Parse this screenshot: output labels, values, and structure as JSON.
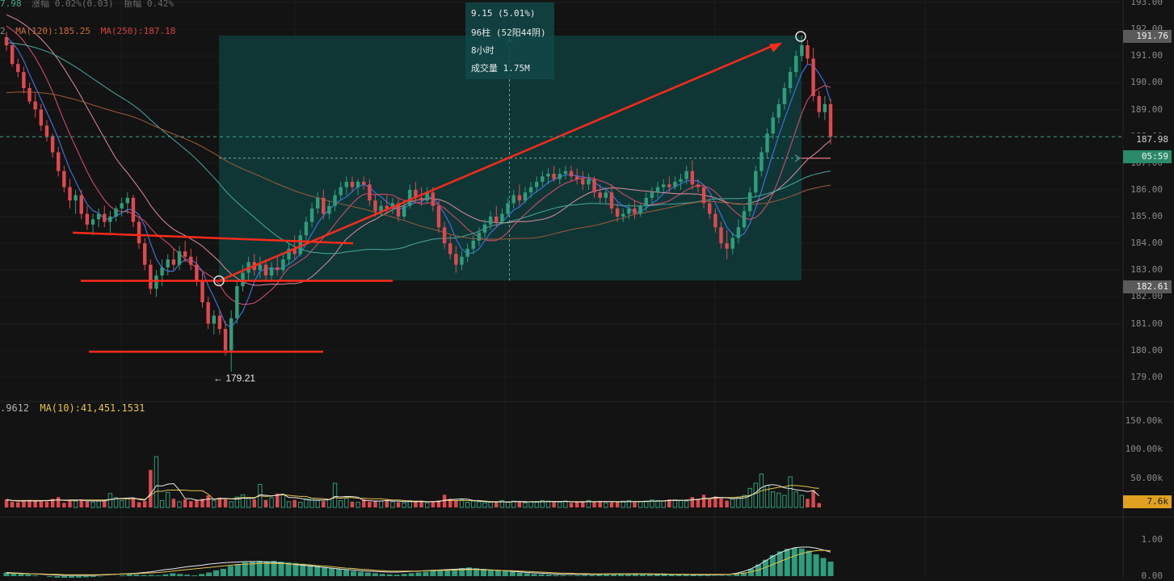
{
  "header": {
    "change_label": "涨幅 0.02%(0.03)",
    "amplitude_label": "振幅 0.42%",
    "left_fragment": "7.98"
  },
  "ma_legend": {
    "prefix": "2",
    "ma120": "MA(120):185.25",
    "ma250": "MA(250):187.18"
  },
  "measure_tooltip": {
    "change": "9.15 (5.01%)",
    "bars": "96柱 (52阳44阴)",
    "duration": "8小时",
    "volume": "成交量 1.75M"
  },
  "price_axis": {
    "ticks": [
      "193.00",
      "192.00",
      "191.00",
      "190.00",
      "189.00",
      "188.00",
      "187.00",
      "186.00",
      "185.00",
      "184.00",
      "183.00",
      "182.00",
      "181.00",
      "180.00",
      "179.00"
    ],
    "high_tag": "191.76",
    "current_tag": "187.98",
    "countdown_tag": "05:59",
    "low_tag": "182.61"
  },
  "low_annotation": "← 179.21",
  "volume_panel": {
    "legend_value": ".9612",
    "legend_ma": "MA(10):41,451.1531",
    "ticks": [
      "150.00k",
      "100.00k",
      "50.00k"
    ],
    "current_tag": "7.6k"
  },
  "indicator_panel": {
    "ticks": [
      "1.00",
      "0.00"
    ]
  },
  "colors": {
    "up": "#2e9d7c",
    "down": "#e0484f",
    "measure_box": "#0f3d3c",
    "annotation": "#ff2a1a",
    "volume_tag": "#e0a020",
    "price_tag": "#2a8a6a"
  },
  "chart_data": {
    "type": "candlestick",
    "interval": "5m",
    "y_range": [
      178.6,
      193.0
    ],
    "bars": [
      [
        191.7,
        191.9,
        191.2,
        191.4
      ],
      [
        191.4,
        191.5,
        190.6,
        190.7
      ],
      [
        190.7,
        190.9,
        190.2,
        190.4
      ],
      [
        190.4,
        190.6,
        189.6,
        189.8
      ],
      [
        189.8,
        190.0,
        189.2,
        189.3
      ],
      [
        189.3,
        189.6,
        188.7,
        189.0
      ],
      [
        189.0,
        189.2,
        188.2,
        188.4
      ],
      [
        188.4,
        188.6,
        187.8,
        188.0
      ],
      [
        188.0,
        188.1,
        187.2,
        187.4
      ],
      [
        187.4,
        187.6,
        186.5,
        186.7
      ],
      [
        186.7,
        186.9,
        185.9,
        186.1
      ],
      [
        186.1,
        186.4,
        185.3,
        185.6
      ],
      [
        185.6,
        186.0,
        185.1,
        185.8
      ],
      [
        185.8,
        186.0,
        184.9,
        185.1
      ],
      [
        185.1,
        185.4,
        184.5,
        184.7
      ],
      [
        184.7,
        185.1,
        184.3,
        184.9
      ],
      [
        184.9,
        185.3,
        184.6,
        185.1
      ],
      [
        185.1,
        185.4,
        184.6,
        184.8
      ],
      [
        184.8,
        185.2,
        184.4,
        185.0
      ],
      [
        185.0,
        185.4,
        184.8,
        185.3
      ],
      [
        185.3,
        185.7,
        185.0,
        185.5
      ],
      [
        185.5,
        185.9,
        185.1,
        185.7
      ],
      [
        185.7,
        185.8,
        184.6,
        184.8
      ],
      [
        184.8,
        185.0,
        183.8,
        184.0
      ],
      [
        184.0,
        184.2,
        183.0,
        183.2
      ],
      [
        183.2,
        183.4,
        182.1,
        182.3
      ],
      [
        182.3,
        183.0,
        182.0,
        182.8
      ],
      [
        182.8,
        183.4,
        182.4,
        183.1
      ],
      [
        183.1,
        183.6,
        182.8,
        183.4
      ],
      [
        183.4,
        183.8,
        183.0,
        183.2
      ],
      [
        183.2,
        183.9,
        183.0,
        183.7
      ],
      [
        183.7,
        184.1,
        183.3,
        183.5
      ],
      [
        183.5,
        183.8,
        183.0,
        183.2
      ],
      [
        183.2,
        183.5,
        182.4,
        182.6
      ],
      [
        182.6,
        182.9,
        181.6,
        181.8
      ],
      [
        181.8,
        182.0,
        180.8,
        181.0
      ],
      [
        181.0,
        181.5,
        180.6,
        181.3
      ],
      [
        181.3,
        181.5,
        180.6,
        180.8
      ],
      [
        180.8,
        181.1,
        179.8,
        180.0
      ],
      [
        180.0,
        181.5,
        179.21,
        181.2
      ],
      [
        181.2,
        182.6,
        181.0,
        182.4
      ],
      [
        182.4,
        183.2,
        182.2,
        182.9
      ],
      [
        182.9,
        183.5,
        182.6,
        183.3
      ],
      [
        183.3,
        183.6,
        182.8,
        183.0
      ],
      [
        183.0,
        183.5,
        182.7,
        183.2
      ],
      [
        183.2,
        183.4,
        182.6,
        182.8
      ],
      [
        182.8,
        183.3,
        182.6,
        183.1
      ],
      [
        183.1,
        183.5,
        182.8,
        183.0
      ],
      [
        183.0,
        183.6,
        182.9,
        183.4
      ],
      [
        183.4,
        184.0,
        183.2,
        183.8
      ],
      [
        183.8,
        184.3,
        183.4,
        183.6
      ],
      [
        183.6,
        184.5,
        183.5,
        184.3
      ],
      [
        184.3,
        185.0,
        184.1,
        184.8
      ],
      [
        184.8,
        185.5,
        184.6,
        185.3
      ],
      [
        185.3,
        185.9,
        185.1,
        185.7
      ],
      [
        185.7,
        186.0,
        184.9,
        185.1
      ],
      [
        185.1,
        185.6,
        184.9,
        185.4
      ],
      [
        185.4,
        186.0,
        185.2,
        185.8
      ],
      [
        185.8,
        186.3,
        185.6,
        186.1
      ],
      [
        186.1,
        186.5,
        185.8,
        186.3
      ],
      [
        186.3,
        186.5,
        185.9,
        186.1
      ],
      [
        186.1,
        186.4,
        185.8,
        186.3
      ],
      [
        186.3,
        186.5,
        186.0,
        186.2
      ],
      [
        186.2,
        186.4,
        185.4,
        185.6
      ],
      [
        185.6,
        185.8,
        185.0,
        185.2
      ],
      [
        185.2,
        185.6,
        185.0,
        185.4
      ],
      [
        185.4,
        185.8,
        185.1,
        185.3
      ],
      [
        185.3,
        185.7,
        185.1,
        185.5
      ],
      [
        185.5,
        185.7,
        184.8,
        185.0
      ],
      [
        185.0,
        185.6,
        184.9,
        185.4
      ],
      [
        185.4,
        186.2,
        185.3,
        186.0
      ],
      [
        186.0,
        186.3,
        185.5,
        185.7
      ],
      [
        185.7,
        186.1,
        185.4,
        185.6
      ],
      [
        185.6,
        186.1,
        185.5,
        185.9
      ],
      [
        185.9,
        186.1,
        185.2,
        185.4
      ],
      [
        185.4,
        185.6,
        184.4,
        184.6
      ],
      [
        184.6,
        184.8,
        183.8,
        184.0
      ],
      [
        184.0,
        184.3,
        183.4,
        183.6
      ],
      [
        183.6,
        183.9,
        182.9,
        183.2
      ],
      [
        183.2,
        183.7,
        183.0,
        183.5
      ],
      [
        183.5,
        184.0,
        183.3,
        183.8
      ],
      [
        183.8,
        184.3,
        183.6,
        184.1
      ],
      [
        184.1,
        184.6,
        183.9,
        184.4
      ],
      [
        184.4,
        184.9,
        184.2,
        184.7
      ],
      [
        184.7,
        185.2,
        184.5,
        185.0
      ],
      [
        185.0,
        185.4,
        184.6,
        184.8
      ],
      [
        184.8,
        185.3,
        184.7,
        185.1
      ],
      [
        185.1,
        185.7,
        185.0,
        185.5
      ],
      [
        185.5,
        186.0,
        185.3,
        185.8
      ],
      [
        185.8,
        186.2,
        185.4,
        185.6
      ],
      [
        185.6,
        186.1,
        185.5,
        185.9
      ],
      [
        185.9,
        186.3,
        185.7,
        186.1
      ],
      [
        186.1,
        186.5,
        185.9,
        186.3
      ],
      [
        186.3,
        186.7,
        186.1,
        186.5
      ],
      [
        186.5,
        186.8,
        186.2,
        186.6
      ],
      [
        186.6,
        186.9,
        186.3,
        186.4
      ],
      [
        186.4,
        186.8,
        186.2,
        186.6
      ],
      [
        186.6,
        186.9,
        186.4,
        186.7
      ],
      [
        186.7,
        186.9,
        186.3,
        186.5
      ],
      [
        186.5,
        186.8,
        186.2,
        186.4
      ],
      [
        186.4,
        186.7,
        186.0,
        186.2
      ],
      [
        186.2,
        186.6,
        186.0,
        186.4
      ],
      [
        186.4,
        186.5,
        185.7,
        185.9
      ],
      [
        185.9,
        186.2,
        185.5,
        185.7
      ],
      [
        185.7,
        186.1,
        185.5,
        185.9
      ],
      [
        185.9,
        186.2,
        185.1,
        185.3
      ],
      [
        185.3,
        185.5,
        184.8,
        185.0
      ],
      [
        185.0,
        185.3,
        184.8,
        185.1
      ],
      [
        185.1,
        185.5,
        184.9,
        185.3
      ],
      [
        185.3,
        185.6,
        184.9,
        185.1
      ],
      [
        185.1,
        185.5,
        185.0,
        185.4
      ],
      [
        185.4,
        185.9,
        185.2,
        185.7
      ],
      [
        185.7,
        186.1,
        185.5,
        185.9
      ],
      [
        185.9,
        186.3,
        185.7,
        186.1
      ],
      [
        186.1,
        186.4,
        185.9,
        186.2
      ],
      [
        186.2,
        186.5,
        185.9,
        186.1
      ],
      [
        186.1,
        186.5,
        186.0,
        186.3
      ],
      [
        186.3,
        186.6,
        186.0,
        186.4
      ],
      [
        186.4,
        186.9,
        186.2,
        186.7
      ],
      [
        186.7,
        187.1,
        186.0,
        186.2
      ],
      [
        186.2,
        186.4,
        185.9,
        186.1
      ],
      [
        186.1,
        186.2,
        185.3,
        185.5
      ],
      [
        185.5,
        185.7,
        184.9,
        185.1
      ],
      [
        185.1,
        185.3,
        184.4,
        184.6
      ],
      [
        184.6,
        184.8,
        183.8,
        184.0
      ],
      [
        184.0,
        184.5,
        183.4,
        183.8
      ],
      [
        183.8,
        184.4,
        183.6,
        184.2
      ],
      [
        184.2,
        184.9,
        184.0,
        184.6
      ],
      [
        184.6,
        185.4,
        184.5,
        185.2
      ],
      [
        185.2,
        186.1,
        185.0,
        185.9
      ],
      [
        185.9,
        186.9,
        185.7,
        186.7
      ],
      [
        186.7,
        187.6,
        186.5,
        187.4
      ],
      [
        187.4,
        188.3,
        187.2,
        188.1
      ],
      [
        188.1,
        188.9,
        187.9,
        188.7
      ],
      [
        188.7,
        189.4,
        188.5,
        189.2
      ],
      [
        189.2,
        190.0,
        189.0,
        189.8
      ],
      [
        189.8,
        190.6,
        189.6,
        190.4
      ],
      [
        190.4,
        191.2,
        190.2,
        191.0
      ],
      [
        191.0,
        191.76,
        190.8,
        191.4
      ],
      [
        191.4,
        191.6,
        190.7,
        190.9
      ],
      [
        190.9,
        191.3,
        189.3,
        189.5
      ],
      [
        189.5,
        189.7,
        188.7,
        188.9
      ],
      [
        188.9,
        189.5,
        188.6,
        189.2
      ],
      [
        189.2,
        189.4,
        187.7,
        187.98
      ]
    ],
    "volume": [
      14,
      10,
      9,
      12,
      13,
      11,
      12,
      10,
      15,
      18,
      8,
      13,
      11,
      14,
      10,
      9,
      12,
      13,
      24,
      17,
      12,
      15,
      16,
      9,
      11,
      65,
      88,
      12,
      26,
      15,
      10,
      14,
      11,
      13,
      15,
      21,
      12,
      17,
      14,
      10,
      18,
      22,
      16,
      14,
      40,
      13,
      17,
      24,
      22,
      10,
      13,
      9,
      15,
      16,
      12,
      11,
      14,
      42,
      12,
      16,
      10,
      9,
      14,
      10,
      12,
      11,
      13,
      10,
      9,
      8,
      12,
      10,
      11,
      8,
      10,
      12,
      22,
      15,
      12,
      13,
      9,
      11,
      10,
      8,
      9,
      10,
      12,
      9,
      11,
      10,
      8,
      10,
      9,
      12,
      11,
      10,
      9,
      11,
      8,
      10,
      9,
      12,
      10,
      11,
      8,
      9,
      10,
      11,
      12,
      9,
      10,
      11,
      13,
      12,
      11,
      14,
      13,
      12,
      11,
      18,
      15,
      22,
      14,
      19,
      16,
      12,
      15,
      18,
      21,
      33,
      42,
      58,
      38,
      27,
      25,
      21,
      53,
      27,
      21,
      15,
      30,
      7.6
    ],
    "volume_ma10": [
      13,
      12,
      12,
      12,
      12,
      12,
      12,
      12,
      13,
      13,
      12,
      12,
      12,
      13,
      13,
      13,
      13,
      13,
      14,
      15,
      15,
      15,
      15,
      15,
      14,
      21,
      28,
      28,
      30,
      30,
      30,
      30,
      29,
      29,
      29,
      23,
      14,
      15,
      15,
      15,
      16,
      17,
      17,
      17,
      20,
      19,
      20,
      21,
      22,
      21,
      20,
      19,
      19,
      16,
      16,
      15,
      14,
      17,
      16,
      17,
      17,
      16,
      16,
      15,
      15,
      15,
      14,
      13,
      13,
      12,
      11,
      11,
      11,
      10,
      10,
      11,
      12,
      12,
      12,
      12,
      12,
      12,
      12,
      11,
      10,
      10,
      10,
      9,
      10,
      10,
      9,
      10,
      10,
      10,
      10,
      10,
      10,
      10,
      10,
      10,
      10,
      10,
      10,
      10,
      10,
      10,
      10,
      10,
      10,
      10,
      10,
      10,
      11,
      11,
      11,
      12,
      12,
      12,
      13,
      13,
      14,
      15,
      15,
      16,
      17,
      17,
      17,
      18,
      19,
      21,
      24,
      29,
      31,
      33,
      35,
      36,
      38,
      38,
      37,
      36,
      34,
      33
    ],
    "osc_hist": [
      0.1,
      0.08,
      0.06,
      0.05,
      0.02,
      0,
      -0.02,
      -0.04,
      -0.05,
      -0.05,
      -0.04,
      -0.03,
      -0.02,
      -0.01,
      0,
      0,
      0.02,
      0.05,
      0.04,
      0.03,
      0.03,
      0.02,
      0.05,
      0.08,
      0.06,
      0.04,
      0.02,
      0.06,
      0.1,
      0.16,
      0.2,
      0.28,
      0.33,
      0.38,
      0.4,
      0.42,
      0.41,
      0.42,
      0.4,
      0.38,
      0.36,
      0.34,
      0.3,
      0.28,
      0.25,
      0.22,
      0.2,
      0.17,
      0.14,
      0.12,
      0.1,
      0.08,
      0.06,
      0.05,
      0.04,
      0.06,
      0.08,
      0.1,
      0.12,
      0.15,
      0.16,
      0.18,
      0.2,
      0.22,
      0.24,
      0.22,
      0.2,
      0.18,
      0.16,
      0.14,
      0.12,
      0.1,
      0.08,
      0.06,
      0.05,
      0.04,
      0.03,
      0.02,
      0.01,
      0.02,
      0.03,
      0.03,
      0.04,
      0.05,
      0.05,
      0.06,
      0.07,
      0.08,
      0.07,
      0.06,
      0.05,
      0.05,
      0.06,
      0.05,
      0.04,
      0.03,
      0.02,
      0.02,
      0.01,
      0.01,
      0.02,
      0.05,
      0.1,
      0.2,
      0.32,
      0.45,
      0.58,
      0.68,
      0.75,
      0.78,
      0.76,
      0.7,
      0.6,
      0.5,
      0.4
    ],
    "osc_line_a": [
      0.1,
      0.09,
      0.08,
      0.07,
      0.06,
      0.05,
      0.04,
      0.03,
      0.02,
      0.02,
      0.02,
      0.02,
      0.02,
      0.03,
      0.04,
      0.05,
      0.06,
      0.07,
      0.08,
      0.1,
      0.12,
      0.15,
      0.18,
      0.2,
      0.23,
      0.26,
      0.28,
      0.3,
      0.33,
      0.35,
      0.37,
      0.38,
      0.39,
      0.4,
      0.4,
      0.4,
      0.39,
      0.38,
      0.36,
      0.34,
      0.32,
      0.3,
      0.28,
      0.26,
      0.24,
      0.22,
      0.2,
      0.18,
      0.17,
      0.15,
      0.14,
      0.13,
      0.12,
      0.11,
      0.11,
      0.12,
      0.13,
      0.14,
      0.15,
      0.16,
      0.17,
      0.18,
      0.19,
      0.2,
      0.2,
      0.19,
      0.18,
      0.17,
      0.16,
      0.15,
      0.13,
      0.12,
      0.1,
      0.09,
      0.08,
      0.07,
      0.06,
      0.05,
      0.05,
      0.05,
      0.05,
      0.05,
      0.05,
      0.06,
      0.06,
      0.06,
      0.06,
      0.06,
      0.06,
      0.06,
      0.05,
      0.05,
      0.05,
      0.05,
      0.05,
      0.04,
      0.04,
      0.04,
      0.04,
      0.04,
      0.05,
      0.08,
      0.13,
      0.2,
      0.3,
      0.42,
      0.54,
      0.64,
      0.72,
      0.78,
      0.8,
      0.8,
      0.77,
      0.72,
      0.66
    ],
    "osc_line_b": [
      0.08,
      0.08,
      0.07,
      0.07,
      0.06,
      0.06,
      0.05,
      0.05,
      0.04,
      0.04,
      0.04,
      0.04,
      0.04,
      0.04,
      0.05,
      0.05,
      0.06,
      0.06,
      0.07,
      0.08,
      0.09,
      0.1,
      0.12,
      0.14,
      0.16,
      0.18,
      0.2,
      0.22,
      0.24,
      0.26,
      0.28,
      0.3,
      0.32,
      0.33,
      0.34,
      0.35,
      0.35,
      0.35,
      0.35,
      0.34,
      0.33,
      0.32,
      0.31,
      0.29,
      0.28,
      0.26,
      0.24,
      0.22,
      0.21,
      0.19,
      0.18,
      0.16,
      0.15,
      0.14,
      0.14,
      0.14,
      0.14,
      0.14,
      0.15,
      0.15,
      0.16,
      0.16,
      0.17,
      0.17,
      0.18,
      0.18,
      0.17,
      0.17,
      0.16,
      0.15,
      0.15,
      0.14,
      0.13,
      0.12,
      0.11,
      0.1,
      0.09,
      0.08,
      0.08,
      0.07,
      0.07,
      0.06,
      0.06,
      0.06,
      0.06,
      0.06,
      0.06,
      0.06,
      0.06,
      0.06,
      0.06,
      0.06,
      0.05,
      0.05,
      0.05,
      0.05,
      0.05,
      0.05,
      0.05,
      0.05,
      0.05,
      0.06,
      0.08,
      0.12,
      0.17,
      0.24,
      0.32,
      0.4,
      0.48,
      0.56,
      0.62,
      0.67,
      0.7,
      0.71,
      0.7
    ]
  }
}
